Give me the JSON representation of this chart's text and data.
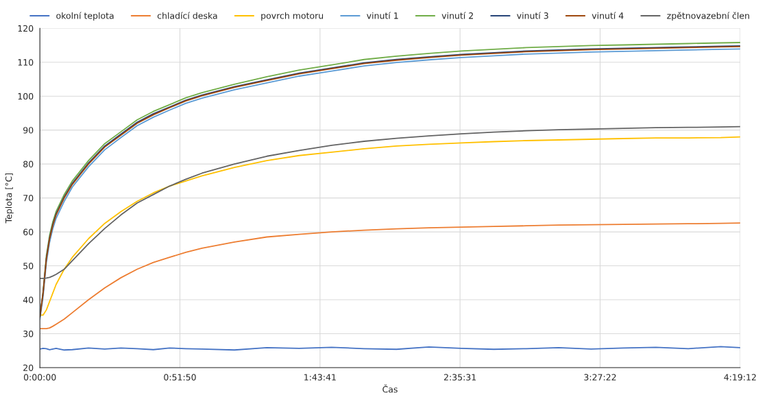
{
  "chart_data": {
    "type": "line",
    "xlabel": "Čas",
    "ylabel": "Teplota [°C]",
    "x": [
      0,
      0.02,
      0.04,
      0.06,
      0.08,
      0.1,
      0.15,
      0.2,
      0.3,
      0.4,
      0.5,
      0.6,
      0.7,
      0.8,
      0.9,
      1.0,
      1.2,
      1.4,
      1.6,
      1.8,
      2.0,
      2.2,
      2.4,
      2.6,
      2.8,
      3.0,
      3.2,
      3.4,
      3.6,
      3.8,
      4.0,
      4.2,
      4.32
    ],
    "series": [
      {
        "name": "okolní teplota",
        "color": "#4472c4",
        "values": [
          25.5,
          25.7,
          25.6,
          25.3,
          25.5,
          25.7,
          25.2,
          25.3,
          25.8,
          25.5,
          25.8,
          25.6,
          25.3,
          25.8,
          25.6,
          25.5,
          25.2,
          25.9,
          25.7,
          26.0,
          25.6,
          25.4,
          26.1,
          25.7,
          25.4,
          25.6,
          25.9,
          25.5,
          25.8,
          26.0,
          25.6,
          26.2,
          25.9
        ]
      },
      {
        "name": "chladící deska",
        "color": "#ed7d31",
        "values": [
          31.5,
          31.5,
          31.5,
          31.7,
          32.2,
          32.8,
          34.3,
          36.2,
          40,
          43.5,
          46.5,
          49,
          51,
          52.5,
          54,
          55.2,
          57,
          58.5,
          59.3,
          60,
          60.5,
          60.9,
          61.2,
          61.4,
          61.6,
          61.8,
          62,
          62.1,
          62.2,
          62.3,
          62.4,
          62.5,
          62.6
        ]
      },
      {
        "name": "povrch motoru",
        "color": "#ffc000",
        "values": [
          35.5,
          35.5,
          37,
          39.5,
          42,
          44.5,
          49,
          52.5,
          58,
          62.5,
          66,
          69,
          71.5,
          73.5,
          75,
          76.5,
          79,
          81,
          82.5,
          83.5,
          84.5,
          85.3,
          85.8,
          86.2,
          86.6,
          86.9,
          87.1,
          87.3,
          87.5,
          87.7,
          87.7,
          87.8,
          88
        ]
      },
      {
        "name": "vinutí 1",
        "color": "#5b9bd5",
        "values": [
          34.2,
          41,
          51,
          57,
          61,
          64,
          69,
          73.2,
          79.2,
          84.2,
          87.8,
          91.3,
          93.8,
          95.9,
          97.9,
          99.4,
          101.9,
          103.9,
          105.9,
          107.4,
          108.9,
          109.9,
          110.7,
          111.4,
          111.9,
          112.4,
          112.7,
          113,
          113.2,
          113.4,
          113.6,
          113.8,
          113.9
        ]
      },
      {
        "name": "vinutí 2",
        "color": "#70ad47",
        "values": [
          35,
          42.5,
          53,
          59,
          63,
          66,
          71,
          75,
          81,
          86,
          89.5,
          93,
          95.5,
          97.5,
          99.5,
          101,
          103.5,
          105.7,
          107.7,
          109.2,
          110.8,
          111.8,
          112.6,
          113.3,
          113.8,
          114.3,
          114.6,
          114.9,
          115.1,
          115.3,
          115.5,
          115.7,
          115.8
        ]
      },
      {
        "name": "vinutí 3",
        "color": "#264478",
        "values": [
          35,
          42.2,
          52.3,
          58.3,
          62.3,
          65.3,
          70.3,
          74.3,
          80.3,
          85.3,
          88.8,
          92.3,
          94.8,
          96.8,
          98.8,
          100.3,
          102.8,
          104.8,
          106.8,
          108.3,
          109.8,
          110.8,
          111.6,
          112.3,
          112.8,
          113.3,
          113.6,
          113.9,
          114.1,
          114.3,
          114.5,
          114.7,
          114.8
        ]
      },
      {
        "name": "vinutí 4",
        "color": "#9e480e",
        "values": [
          35,
          42,
          52,
          58,
          62,
          65,
          70,
          74,
          80,
          85,
          88.5,
          92,
          94.5,
          96.6,
          98.6,
          100.1,
          102.6,
          104.6,
          106.6,
          108.1,
          109.6,
          110.6,
          111.4,
          112.1,
          112.6,
          113.1,
          113.4,
          113.7,
          113.9,
          114.1,
          114.3,
          114.5,
          114.6
        ]
      },
      {
        "name": "zpětnovazební člen",
        "color": "#636363",
        "values": [
          46.3,
          46.3,
          46.4,
          46.6,
          47,
          47.5,
          49,
          51.5,
          56.5,
          61,
          65,
          68.5,
          71,
          73.5,
          75.5,
          77.3,
          80,
          82.3,
          84,
          85.5,
          86.7,
          87.6,
          88.3,
          88.9,
          89.4,
          89.8,
          90.1,
          90.3,
          90.5,
          90.7,
          90.8,
          90.9,
          91
        ]
      }
    ],
    "xlim": [
      0,
      4.32
    ],
    "ylim": [
      20,
      120
    ],
    "xticks": [
      {
        "value": 0,
        "label": "0:00:00"
      },
      {
        "value": 0.8639,
        "label": "0:51:50"
      },
      {
        "value": 1.7281,
        "label": "1:43:41"
      },
      {
        "value": 2.5919,
        "label": "2:35:31"
      },
      {
        "value": 3.4561,
        "label": "3:27:22"
      },
      {
        "value": 4.32,
        "label": "4:19:12"
      }
    ],
    "yticks": [
      20,
      30,
      40,
      50,
      60,
      70,
      80,
      90,
      100,
      110,
      120
    ],
    "grid": true,
    "legend": "top",
    "line_style": "solid"
  }
}
